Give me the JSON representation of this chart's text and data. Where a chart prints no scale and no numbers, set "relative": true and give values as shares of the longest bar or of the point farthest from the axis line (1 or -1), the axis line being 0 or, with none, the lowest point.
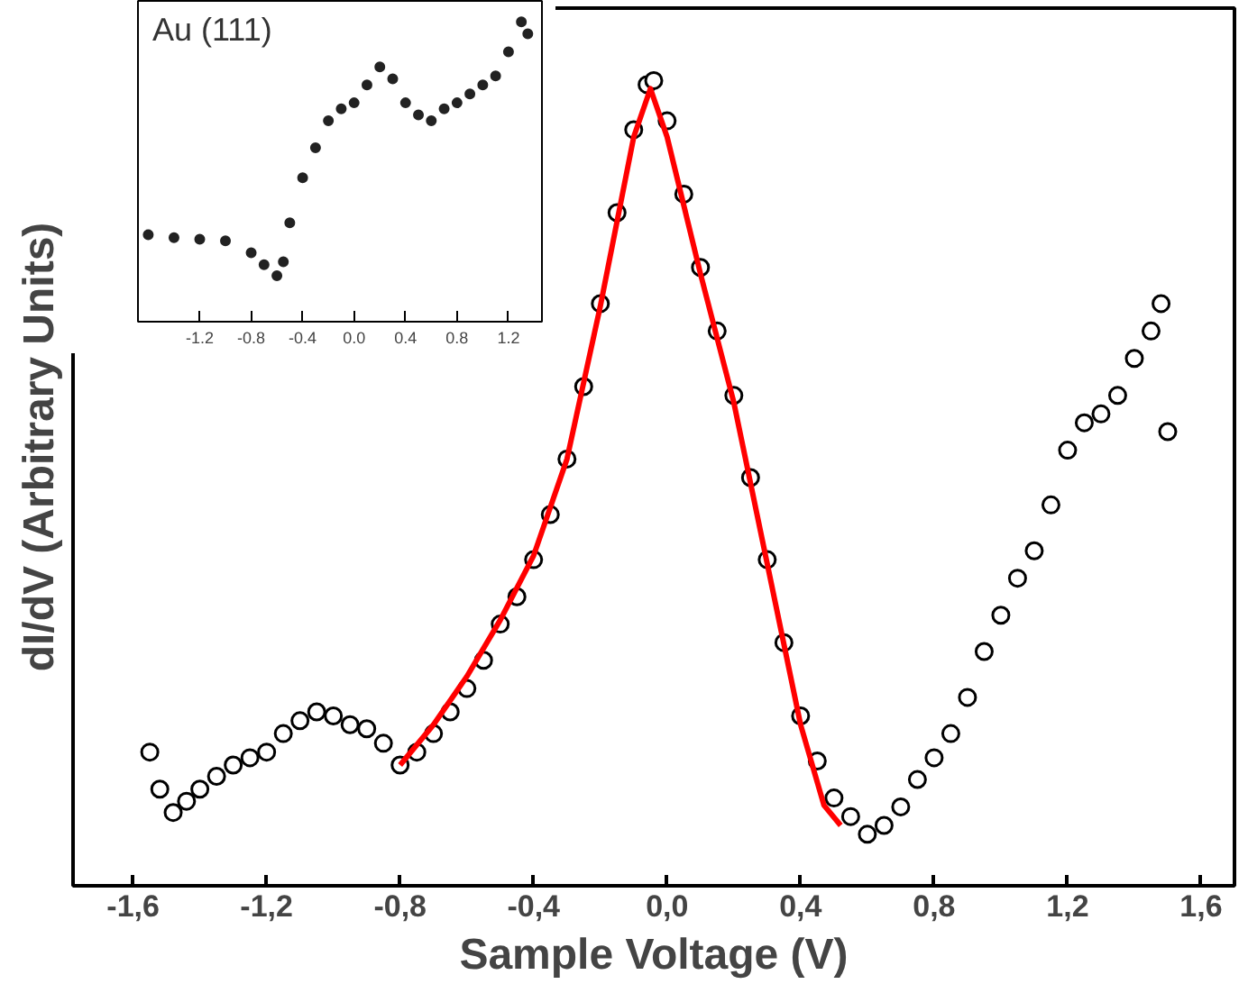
{
  "chart_data": [
    {
      "type": "scatter",
      "xlabel": "Sample Voltage (V)",
      "ylabel": "dI/dV (Arbitrary Units)",
      "relative": true,
      "grid": false,
      "marker": "circle",
      "xlim": [
        -1.78,
        1.7
      ],
      "xticks": [
        {
          "value": -1.6,
          "label": "-1,6"
        },
        {
          "value": -1.2,
          "label": "-1,2"
        },
        {
          "value": -0.8,
          "label": "-0,8"
        },
        {
          "value": -0.4,
          "label": "-0,4"
        },
        {
          "value": 0.0,
          "label": "0,0"
        },
        {
          "value": 0.4,
          "label": "0,4"
        },
        {
          "value": 0.8,
          "label": "0,8"
        },
        {
          "value": 1.2,
          "label": "1,2"
        },
        {
          "value": 1.6,
          "label": "1,6"
        }
      ],
      "series": [
        {
          "color": "#000000",
          "x": [
            -1.55,
            -1.52,
            -1.48,
            -1.44,
            -1.4,
            -1.35,
            -1.3,
            -1.25,
            -1.2,
            -1.15,
            -1.1,
            -1.05,
            -1.0,
            -0.95,
            -0.9,
            -0.85,
            -0.8,
            -0.75,
            -0.7,
            -0.65,
            -0.6,
            -0.55,
            -0.5,
            -0.45,
            -0.4,
            -0.35,
            -0.3,
            -0.25,
            -0.2,
            -0.15,
            -0.1,
            -0.06,
            -0.04,
            0.0,
            0.05,
            0.1,
            0.15,
            0.2,
            0.25,
            0.3,
            0.35,
            0.4,
            0.45,
            0.5,
            0.55,
            0.6,
            0.65,
            0.7,
            0.75,
            0.8,
            0.85,
            0.9,
            0.95,
            1.0,
            1.05,
            1.1,
            1.15,
            1.2,
            1.25,
            1.3,
            1.35,
            1.4,
            1.45,
            1.48,
            1.5
          ],
          "values": [
            0.166,
            0.12,
            0.091,
            0.105,
            0.12,
            0.136,
            0.15,
            0.159,
            0.166,
            0.189,
            0.205,
            0.216,
            0.211,
            0.2,
            0.195,
            0.177,
            0.15,
            0.166,
            0.189,
            0.216,
            0.245,
            0.28,
            0.325,
            0.359,
            0.405,
            0.461,
            0.53,
            0.62,
            0.723,
            0.836,
            0.939,
            0.995,
            1.0,
            0.95,
            0.859,
            0.768,
            0.689,
            0.609,
            0.507,
            0.405,
            0.302,
            0.211,
            0.155,
            0.109,
            0.086,
            0.064,
            0.075,
            0.098,
            0.132,
            0.159,
            0.189,
            0.234,
            0.291,
            0.336,
            0.382,
            0.416,
            0.473,
            0.541,
            0.575,
            0.586,
            0.609,
            0.655,
            0.689,
            0.723,
            0.564
          ]
        },
        {
          "type": "line",
          "marker": "none",
          "color": "#ff0000",
          "x": [
            -0.8,
            -0.7,
            -0.6,
            -0.5,
            -0.4,
            -0.3,
            -0.2,
            -0.1,
            -0.05,
            0.0,
            0.1,
            0.2,
            0.3,
            0.4,
            0.47,
            0.52
          ],
          "values": [
            0.15,
            0.2,
            0.26,
            0.33,
            0.41,
            0.53,
            0.72,
            0.93,
            0.99,
            0.93,
            0.76,
            0.6,
            0.4,
            0.2,
            0.1,
            0.075
          ]
        }
      ]
    },
    {
      "type": "scatter",
      "title": "Au (111)",
      "relative": true,
      "grid": false,
      "marker": "circle",
      "xlim": [
        -1.68,
        1.46
      ],
      "xticks": [
        -1.2,
        -0.8,
        -0.4,
        {
          "value": 0.0,
          "label": "0.0"
        },
        0.4,
        0.8,
        1.2
      ],
      "series": [
        {
          "color": "#222222",
          "x": [
            -1.6,
            -1.4,
            -1.2,
            -1.0,
            -0.8,
            -0.7,
            -0.6,
            -0.55,
            -0.5,
            -0.4,
            -0.3,
            -0.2,
            -0.1,
            0.0,
            0.1,
            0.2,
            0.3,
            0.4,
            0.5,
            0.6,
            0.7,
            0.8,
            0.9,
            1.0,
            1.1,
            1.2,
            1.3,
            1.35
          ],
          "values": [
            0.29,
            0.28,
            0.275,
            0.27,
            0.23,
            0.19,
            0.153,
            0.2,
            0.33,
            0.48,
            0.58,
            0.67,
            0.71,
            0.73,
            0.79,
            0.85,
            0.81,
            0.73,
            0.69,
            0.67,
            0.71,
            0.73,
            0.76,
            0.79,
            0.82,
            0.9,
            1.0,
            0.96
          ]
        }
      ]
    }
  ]
}
